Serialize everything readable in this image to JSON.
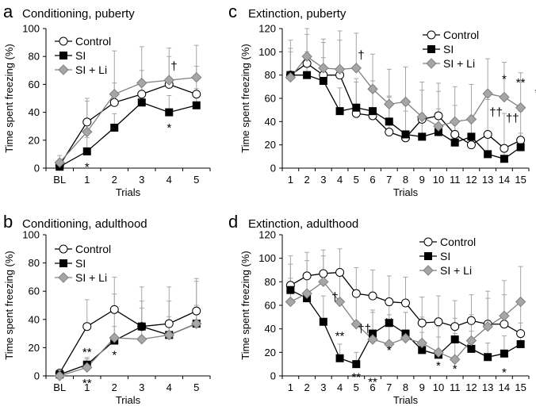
{
  "chart_data": [
    {
      "id": "a",
      "type": "line",
      "panel_letter": "a",
      "title": "Conditioning, puberty",
      "xlabel": "Trials",
      "ylabel": "Time spent freezing (%)",
      "ylim": [
        0,
        100
      ],
      "yticks": [
        "0",
        "20",
        "40",
        "60",
        "80",
        "100"
      ],
      "categories": [
        "BL",
        "1",
        "2",
        "3",
        "4",
        "5"
      ],
      "legend": [
        "Control",
        "SI",
        "SI + Li"
      ],
      "series": [
        {
          "name": "Control",
          "values": [
            2,
            33,
            47,
            53,
            60,
            53
          ],
          "err": [
            3,
            17,
            14,
            17,
            20,
            20
          ]
        },
        {
          "name": "SI",
          "values": [
            1,
            12,
            29,
            47,
            40,
            45
          ],
          "err": [
            2,
            10,
            10,
            12,
            12,
            12
          ]
        },
        {
          "name": "SI + Li",
          "values": [
            4,
            26,
            53,
            61,
            63,
            65
          ],
          "err": [
            5,
            22,
            31,
            26,
            23,
            23
          ]
        }
      ],
      "annotations": [
        {
          "text": "*",
          "x": 1,
          "y": 6,
          "pos": "below"
        },
        {
          "text": "*",
          "x": 4,
          "y": 34,
          "pos": "below"
        },
        {
          "text": "†",
          "x": 4,
          "y": 73,
          "pos": "right"
        }
      ]
    },
    {
      "id": "b",
      "type": "line",
      "panel_letter": "b",
      "title": "Conditioning, adulthood",
      "xlabel": "Trials",
      "ylabel": "Time spent freezing (%)",
      "ylim": [
        0,
        100
      ],
      "yticks": [
        "0",
        "20",
        "40",
        "60",
        "80",
        "100"
      ],
      "categories": [
        "BL",
        "1",
        "2",
        "3",
        "4",
        "5"
      ],
      "legend": [
        "Control",
        "SI",
        "SI + Li"
      ],
      "series": [
        {
          "name": "Control",
          "values": [
            2,
            35,
            47,
            35,
            37,
            46
          ],
          "err": [
            2,
            19,
            23,
            28,
            26,
            23
          ]
        },
        {
          "name": "SI",
          "values": [
            1,
            8,
            25,
            35,
            29,
            37
          ],
          "err": [
            1,
            5,
            10,
            13,
            13,
            13
          ]
        },
        {
          "name": "SI + Li",
          "values": [
            0,
            6,
            27,
            26,
            29,
            37
          ],
          "err": [
            1,
            6,
            31,
            27,
            24,
            30
          ]
        }
      ],
      "annotations": [
        {
          "text": "**",
          "x": 1,
          "y": 13,
          "pos": "above"
        },
        {
          "text": "**",
          "x": 1,
          "y": 0,
          "pos": "below"
        },
        {
          "text": "*",
          "x": 2,
          "y": 20,
          "pos": "below"
        }
      ]
    },
    {
      "id": "c",
      "type": "line",
      "panel_letter": "c",
      "title": "Extinction, puberty",
      "xlabel": "Trials",
      "ylabel": "Time spent freezing (%)",
      "ylim": [
        0,
        120
      ],
      "yticks": [
        "0",
        "20",
        "40",
        "60",
        "80",
        "100",
        "120"
      ],
      "categories": [
        "1",
        "2",
        "3",
        "4",
        "5",
        "6",
        "7",
        "8",
        "9",
        "10",
        "11",
        "12",
        "13",
        "14",
        "15"
      ],
      "legend": [
        "Control",
        "SI",
        "SI + Li"
      ],
      "series": [
        {
          "name": "Control",
          "values": [
            80,
            90,
            80,
            80,
            47,
            45,
            31,
            26,
            42,
            45,
            29,
            20,
            29,
            17,
            24
          ],
          "err": [
            30,
            25,
            28,
            30,
            30,
            30,
            30,
            28,
            25,
            28,
            25,
            25,
            30,
            30,
            25
          ]
        },
        {
          "name": "SI",
          "values": [
            80,
            80,
            75,
            49,
            52,
            49,
            40,
            29,
            27,
            31,
            22,
            27,
            12,
            8,
            18
          ],
          "err": [
            20,
            20,
            20,
            20,
            22,
            22,
            22,
            20,
            20,
            20,
            15,
            15,
            15,
            10,
            12
          ]
        },
        {
          "name": "SI + Li",
          "values": [
            78,
            96,
            86,
            85,
            86,
            68,
            55,
            57,
            44,
            36,
            40,
            42,
            64,
            61,
            52
          ],
          "err": [
            25,
            25,
            25,
            33,
            30,
            30,
            30,
            30,
            30,
            30,
            30,
            30,
            30,
            30,
            30
          ]
        }
      ],
      "annotations": [
        {
          "text": "†",
          "x": 4,
          "y": 97,
          "pos": "right"
        },
        {
          "text": "*",
          "x": 13,
          "y": 72,
          "pos": "above"
        },
        {
          "text": "**",
          "x": 14,
          "y": 69,
          "pos": "above"
        },
        {
          "text": "*",
          "x": 15,
          "y": 60,
          "pos": "above"
        },
        {
          "text": "††",
          "x": 13,
          "y": 48,
          "pos": "left"
        },
        {
          "text": "††",
          "x": 14,
          "y": 43,
          "pos": "left"
        },
        {
          "text": "†",
          "x": 15,
          "y": 39,
          "pos": "right"
        }
      ]
    },
    {
      "id": "d",
      "type": "line",
      "panel_letter": "d",
      "title": "Extinction, adulthood",
      "xlabel": "Trials",
      "ylabel": "Time spent freezing (%)",
      "ylim": [
        0,
        120
      ],
      "yticks": [
        "0",
        "20",
        "40",
        "60",
        "80",
        "100",
        "120"
      ],
      "categories": [
        "1",
        "2",
        "3",
        "4",
        "5",
        "6",
        "7",
        "8",
        "9",
        "10",
        "11",
        "12",
        "13",
        "14",
        "15"
      ],
      "legend": [
        "Control",
        "SI",
        "SI + Li"
      ],
      "series": [
        {
          "name": "Control",
          "values": [
            77,
            85,
            87,
            88,
            70,
            68,
            63,
            62,
            45,
            46,
            42,
            47,
            44,
            44,
            36
          ],
          "err": [
            25,
            20,
            20,
            20,
            22,
            22,
            22,
            22,
            22,
            22,
            22,
            22,
            22,
            25,
            25
          ]
        },
        {
          "name": "SI",
          "values": [
            73,
            66,
            46,
            15,
            10,
            36,
            45,
            36,
            22,
            18,
            31,
            23,
            16,
            19,
            27
          ],
          "err": [
            22,
            22,
            22,
            12,
            10,
            18,
            20,
            18,
            15,
            15,
            18,
            15,
            12,
            15,
            18
          ]
        },
        {
          "name": "SI + Li",
          "values": [
            63,
            70,
            80,
            63,
            44,
            31,
            27,
            32,
            28,
            20,
            14,
            30,
            42,
            51,
            63
          ],
          "err": [
            20,
            28,
            22,
            25,
            25,
            25,
            25,
            22,
            22,
            22,
            22,
            22,
            30,
            30,
            30
          ]
        }
      ],
      "annotations": [
        {
          "text": "†",
          "x": 3,
          "y": 67,
          "pos": "left"
        },
        {
          "text": "**",
          "x": 3,
          "y": 40,
          "pos": "below"
        },
        {
          "text": "††",
          "x": 4,
          "y": 40,
          "pos": "right"
        },
        {
          "text": "**",
          "x": 4,
          "y": 5,
          "pos": "below"
        },
        {
          "text": "**",
          "x": 5,
          "y": 1,
          "pos": "below"
        },
        {
          "text": "**",
          "x": 6,
          "y": 41,
          "pos": "above"
        },
        {
          "text": "*",
          "x": 6,
          "y": 28,
          "pos": "below"
        },
        {
          "text": "*",
          "x": 9,
          "y": 15,
          "pos": "below"
        },
        {
          "text": "*",
          "x": 10,
          "y": 24,
          "pos": "above"
        },
        {
          "text": "*",
          "x": 10,
          "y": 12,
          "pos": "below"
        },
        {
          "text": "*",
          "x": 13,
          "y": 9,
          "pos": "below"
        }
      ]
    }
  ]
}
